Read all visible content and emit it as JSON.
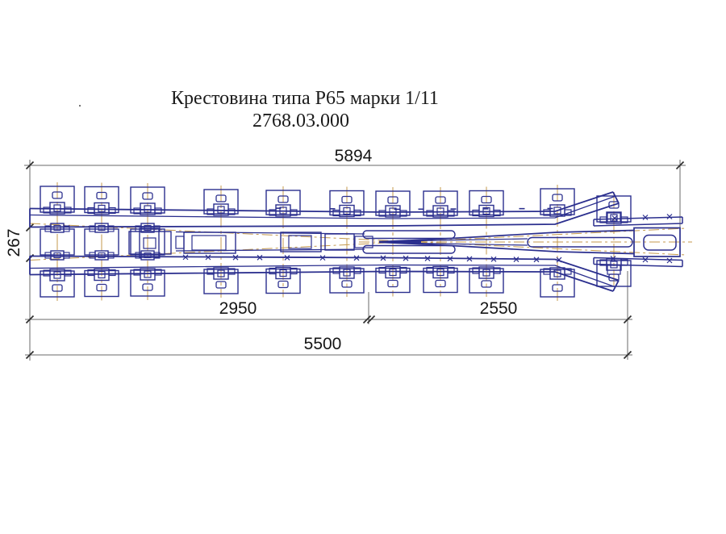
{
  "title": {
    "line1": "Крестовина типа Р65 марки 1/11",
    "line2": "2768.03.000",
    "stray_mark": "."
  },
  "dimensions": {
    "overall_length_top": "5894",
    "front_throat_width": "267",
    "bottom_span_left": "2950",
    "bottom_span_right": "2550",
    "bottom_overall": "5500"
  },
  "colors": {
    "drawing_line": "#2b2f8e",
    "centerline": "#c49a4e",
    "dimension_line": "#6a6a6a",
    "tick": "#2e2e2e",
    "text": "#161616",
    "background": "#ffffff"
  }
}
